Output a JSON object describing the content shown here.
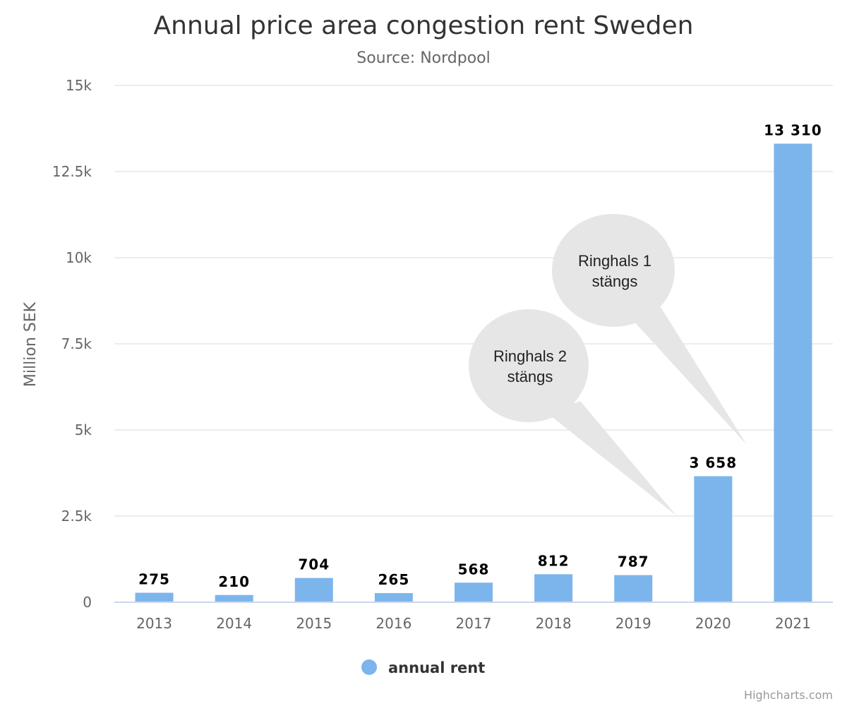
{
  "chart_data": {
    "type": "bar",
    "title": "Annual price area congestion rent Sweden",
    "subtitle": "Source: Nordpool",
    "ylabel": "Million SEK",
    "xlabel": "",
    "ylim": [
      0,
      15000
    ],
    "yticks": [
      0,
      2500,
      5000,
      7500,
      10000,
      12500,
      15000
    ],
    "ytick_labels": [
      "0",
      "2.5k",
      "5k",
      "7.5k",
      "10k",
      "12.5k",
      "15k"
    ],
    "categories": [
      "2013",
      "2014",
      "2015",
      "2016",
      "2017",
      "2018",
      "2019",
      "2020",
      "2021"
    ],
    "series": [
      {
        "name": "annual rent",
        "color": "#7cb5ec",
        "values": [
          275,
          210,
          704,
          265,
          568,
          812,
          787,
          3658,
          13310
        ],
        "data_labels": [
          "275",
          "210",
          "704",
          "265",
          "568",
          "812",
          "787",
          "3 658",
          "13 310"
        ]
      }
    ],
    "grid": true,
    "legend": "bottom-center",
    "annotations": [
      {
        "lines": [
          "Ringhals 2",
          "stängs"
        ],
        "points_to": "2020"
      },
      {
        "lines": [
          "Ringhals 1",
          "stängs"
        ],
        "points_to": "2020"
      }
    ]
  },
  "credits": "Highcharts.com"
}
